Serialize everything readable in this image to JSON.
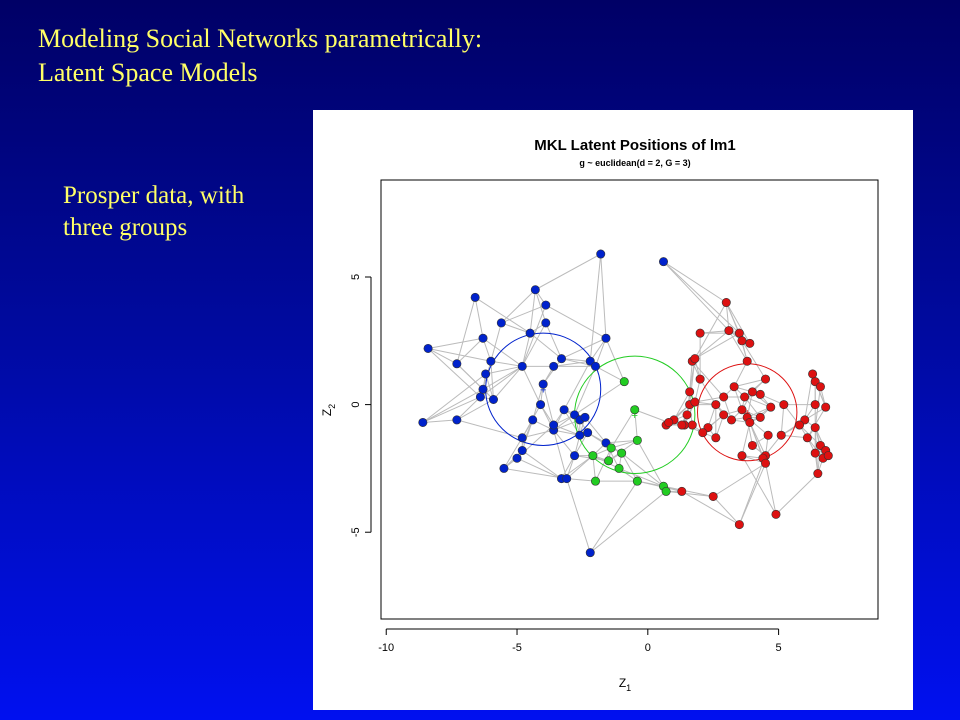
{
  "slide": {
    "title_line1": "Modeling Social Networks parametrically:",
    "title_line2": "Latent  Space Models",
    "note": "Prosper data, with three groups"
  },
  "colors": {
    "background_top": "#000066",
    "background_bottom": "#0010f0",
    "title_text": "#ffff66",
    "group1": "#0022cc",
    "group2": "#22cc22",
    "group3": "#dd1111",
    "edge": "#bbbbbb"
  },
  "chart_data": {
    "type": "scatter",
    "title": "MKL Latent Positions of lm1",
    "subtitle": "g ~ euclidean(d = 2, G = 3)",
    "xlabel": "Z",
    "xlabel_sub": "1",
    "ylabel": "Z",
    "ylabel_sub": "2",
    "xlim": [
      -10.2,
      8.8
    ],
    "ylim": [
      -8.4,
      8.8
    ],
    "xticks": [
      -10,
      -5,
      0,
      5
    ],
    "yticks": [
      -5,
      0,
      5
    ],
    "grid": false,
    "legend": "none",
    "series": [
      {
        "group": 1,
        "color": "#0022cc",
        "center": [
          -4.0,
          0.6
        ],
        "radius": 2.2,
        "x": [
          -8.4,
          -8.6,
          -7.3,
          -7.3,
          -6.2,
          -6.4,
          -5.9,
          -6.3,
          -6.0,
          -6.3,
          -6.6,
          -5.6,
          -4.3,
          -3.9,
          -3.9,
          -4.5,
          -3.3,
          -3.6,
          -4.0,
          -4.8,
          -4.1,
          -4.4,
          -3.6,
          -2.8,
          -2.6,
          -2.6,
          -2.3,
          -2.2,
          -1.6,
          -2.0,
          -1.8,
          -2.4,
          -3.2,
          -3.6,
          -2.8,
          -3.3,
          -4.8,
          -5.0,
          -5.5,
          -4.8,
          -3.1,
          -2.2,
          -1.6,
          0.6
        ],
        "y": [
          2.2,
          -0.7,
          -0.6,
          1.6,
          1.2,
          0.3,
          0.2,
          0.6,
          1.7,
          2.6,
          4.2,
          3.2,
          4.5,
          3.9,
          3.2,
          2.8,
          1.8,
          1.5,
          0.8,
          1.5,
          0.0,
          -0.6,
          -1.0,
          -0.4,
          -0.6,
          -1.2,
          -1.1,
          1.7,
          2.6,
          1.5,
          5.9,
          -0.5,
          -0.2,
          -0.8,
          -2.0,
          -2.9,
          -1.8,
          -2.1,
          -2.5,
          -1.3,
          -2.9,
          -5.8,
          -1.5,
          5.6
        ]
      },
      {
        "group": 2,
        "color": "#22cc22",
        "center": [
          -0.5,
          -0.4
        ],
        "radius": 2.3,
        "x": [
          -0.9,
          -0.5,
          -0.4,
          -1.0,
          -1.5,
          -2.1,
          -1.4,
          -1.1,
          -2.0,
          -0.4,
          0.6,
          0.7
        ],
        "y": [
          0.9,
          -0.2,
          -1.4,
          -1.9,
          -2.2,
          -2.0,
          -1.7,
          -2.5,
          -3.0,
          -3.0,
          -3.2,
          -3.4
        ]
      },
      {
        "group": 3,
        "color": "#dd1111",
        "center": [
          3.8,
          -0.3
        ],
        "radius": 1.9,
        "x": [
          3.0,
          2.0,
          3.1,
          3.5,
          3.6,
          3.9,
          3.8,
          4.5,
          1.7,
          1.8,
          2.0,
          1.6,
          2.9,
          3.3,
          3.7,
          4.0,
          2.6,
          2.9,
          3.2,
          3.6,
          3.8,
          4.3,
          4.7,
          4.3,
          3.9,
          4.6,
          5.1,
          5.2,
          6.3,
          6.4,
          6.6,
          6.8,
          6.0,
          6.4,
          6.6,
          6.4,
          6.8,
          6.7,
          6.5,
          6.9,
          6.1,
          6.4,
          5.8,
          4.5,
          4.4,
          4.5,
          4.0,
          3.6,
          2.6,
          2.3,
          1.6,
          1.8,
          1.5,
          1.4,
          2.1,
          1.7,
          1.3,
          1.0,
          0.7,
          0.8,
          1.3,
          2.5,
          3.5,
          4.9
        ],
        "y": [
          4.0,
          2.8,
          2.9,
          2.8,
          2.5,
          2.4,
          1.7,
          1.0,
          1.7,
          1.8,
          1.0,
          0.5,
          0.3,
          0.7,
          0.3,
          0.5,
          0.0,
          -0.4,
          -0.6,
          -0.2,
          -0.5,
          -0.5,
          -0.1,
          0.4,
          -0.7,
          -1.2,
          -1.2,
          0.0,
          1.2,
          0.9,
          0.7,
          -0.1,
          -0.6,
          -0.9,
          -1.6,
          -1.9,
          -1.8,
          -2.1,
          -2.7,
          -2.0,
          -1.3,
          0.0,
          -0.8,
          -2.0,
          -2.1,
          -2.3,
          -1.6,
          -2.0,
          -1.3,
          -0.9,
          0.0,
          0.1,
          -0.4,
          -0.8,
          -1.1,
          -0.8,
          -0.8,
          -0.6,
          -0.8,
          -0.7,
          -3.4,
          -3.6,
          -4.7,
          -4.3
        ]
      }
    ]
  }
}
